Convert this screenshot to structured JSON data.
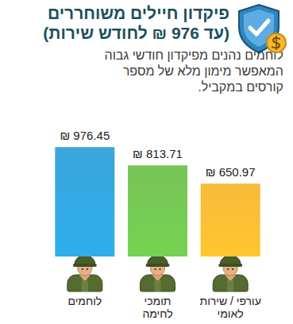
{
  "chart_data": {
    "type": "bar",
    "title": "פיקדון חיילים משוחררים\n(עד 976 ₪ לחודש שירות)",
    "subtitle": "לוחמים נהנים מפיקדון חודשי גבוה\nהמאפשר מימון מלא של מספר\nקורסים במקביל.",
    "categories": [
      "לוחמים",
      "תומכי\nלחימה",
      "עורפי / שירות\nלאומי"
    ],
    "values": [
      976.45,
      813.71,
      650.97
    ],
    "value_labels": [
      "₪ 976.45",
      "₪ 813.71",
      "₪ 650.97"
    ],
    "colors": [
      "#2a9fd8",
      "#6cbf4a",
      "#f7b52a"
    ],
    "ylim": [
      0,
      1000
    ],
    "yticks": [
      0,
      1000
    ],
    "grid": false,
    "data_labels": true,
    "tick_labels": "x"
  }
}
